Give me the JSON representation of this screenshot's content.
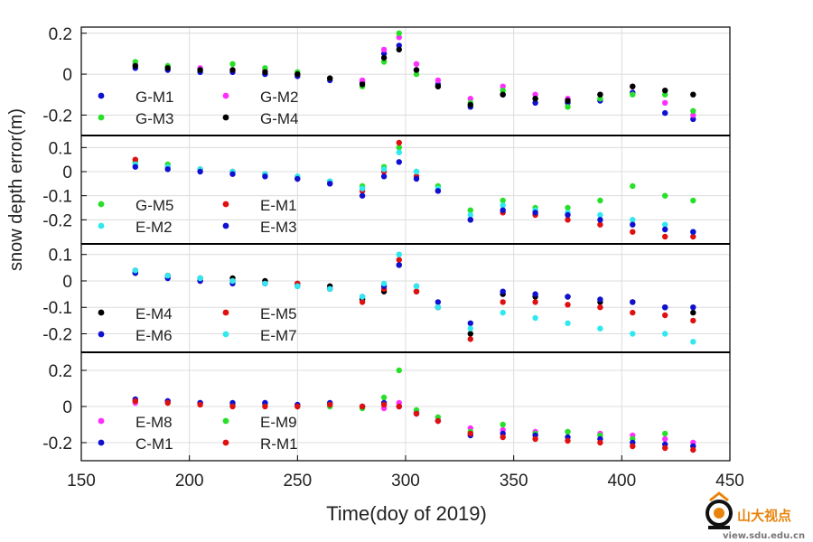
{
  "chart_data": {
    "type": "scatter",
    "xlabel": "Time(doy of 2019)",
    "ylabel": "snow depth error(m)",
    "xlim": [
      150,
      450
    ],
    "xticks": [
      150,
      200,
      250,
      300,
      350,
      400,
      450
    ],
    "grid": true,
    "colors": {
      "G-M1": "#1010d0",
      "G-M2": "#ff30ff",
      "G-M3": "#28e028",
      "G-M4": "#000000",
      "G-M5": "#28e028",
      "E-M1": "#e01010",
      "E-M2": "#30e8f0",
      "E-M3": "#1010d0",
      "E-M4": "#000000",
      "E-M5": "#e01010",
      "E-M6": "#1010d0",
      "E-M7": "#30e8f0",
      "E-M8": "#ff30ff",
      "E-M9": "#28e028",
      "C-M1": "#1010d0",
      "R-M1": "#e01010"
    },
    "panels": [
      {
        "ylim": [
          -0.3,
          0.23
        ],
        "yticks": [
          -0.2,
          0,
          0.2
        ],
        "ytick_labels": [
          "-0.2",
          "0",
          "0.2"
        ],
        "legend": [
          "G-M1",
          "G-M2",
          "G-M3",
          "G-M4"
        ],
        "legend_placement": "bottom-left",
        "series": [
          {
            "name": "G-M1",
            "x": [
              175,
              190,
              205,
              220,
              235,
              250,
              265,
              280,
              290,
              297,
              305,
              315,
              330,
              345,
              360,
              375,
              390,
              405,
              420,
              433
            ],
            "y": [
              0.03,
              0.02,
              0.01,
              0.01,
              0.0,
              -0.01,
              -0.03,
              -0.04,
              0.1,
              0.14,
              0.02,
              -0.05,
              -0.16,
              -0.1,
              -0.14,
              -0.14,
              -0.13,
              -0.09,
              -0.19,
              -0.22
            ]
          },
          {
            "name": "G-M2",
            "x": [
              175,
              190,
              205,
              220,
              235,
              250,
              265,
              280,
              290,
              297,
              305,
              315,
              330,
              345,
              360,
              375,
              390,
              405,
              420,
              433
            ],
            "y": [
              0.05,
              0.04,
              0.03,
              0.02,
              0.02,
              0.0,
              -0.02,
              -0.03,
              0.12,
              0.18,
              0.05,
              -0.03,
              -0.12,
              -0.06,
              -0.1,
              -0.12,
              -0.1,
              -0.06,
              -0.14,
              -0.2
            ]
          },
          {
            "name": "G-M3",
            "x": [
              175,
              190,
              205,
              220,
              235,
              250,
              265,
              280,
              290,
              297,
              305,
              315,
              330,
              345,
              360,
              375,
              390,
              405,
              420,
              433
            ],
            "y": [
              0.06,
              0.04,
              0.02,
              0.05,
              0.03,
              0.01,
              -0.02,
              -0.06,
              0.06,
              0.2,
              0.0,
              -0.06,
              -0.14,
              -0.08,
              -0.12,
              -0.16,
              -0.12,
              -0.1,
              -0.1,
              -0.18
            ]
          },
          {
            "name": "G-M4",
            "x": [
              175,
              190,
              205,
              220,
              235,
              250,
              265,
              280,
              290,
              297,
              305,
              315,
              330,
              345,
              360,
              375,
              390,
              405,
              420,
              433
            ],
            "y": [
              0.04,
              0.03,
              0.02,
              0.02,
              0.01,
              0.0,
              -0.02,
              -0.05,
              0.08,
              0.12,
              0.02,
              -0.06,
              -0.15,
              -0.1,
              -0.12,
              -0.13,
              -0.1,
              -0.06,
              -0.08,
              -0.1
            ]
          }
        ]
      },
      {
        "ylim": [
          -0.3,
          0.15
        ],
        "yticks": [
          -0.2,
          -0.1,
          0,
          0.1
        ],
        "ytick_labels": [
          "-0.2",
          "-0.1",
          "0",
          "0.1"
        ],
        "legend": [
          "G-M5",
          "E-M1",
          "E-M2",
          "E-M3"
        ],
        "legend_placement": "bottom-left",
        "series": [
          {
            "name": "G-M5",
            "x": [
              175,
              190,
              205,
              220,
              235,
              250,
              265,
              280,
              290,
              297,
              305,
              315,
              330,
              345,
              360,
              375,
              390,
              405,
              420,
              433
            ],
            "y": [
              0.04,
              0.03,
              0.01,
              0.0,
              -0.01,
              -0.02,
              -0.04,
              -0.06,
              0.02,
              0.1,
              0.0,
              -0.06,
              -0.16,
              -0.12,
              -0.15,
              -0.15,
              -0.12,
              -0.06,
              -0.1,
              -0.12
            ]
          },
          {
            "name": "E-M1",
            "x": [
              175,
              190,
              205,
              220,
              235,
              250,
              265,
              280,
              290,
              297,
              305,
              315,
              330,
              345,
              360,
              375,
              390,
              405,
              420,
              433
            ],
            "y": [
              0.05,
              0.02,
              0.01,
              0.0,
              -0.01,
              -0.03,
              -0.05,
              -0.08,
              0.0,
              0.12,
              -0.02,
              -0.08,
              -0.2,
              -0.17,
              -0.18,
              -0.2,
              -0.22,
              -0.25,
              -0.27,
              -0.27
            ]
          },
          {
            "name": "E-M2",
            "x": [
              175,
              190,
              205,
              220,
              235,
              250,
              265,
              280,
              290,
              297,
              305,
              315,
              330,
              345,
              360,
              375,
              390,
              405,
              420,
              433
            ],
            "y": [
              0.03,
              0.02,
              0.01,
              0.0,
              -0.01,
              -0.02,
              -0.04,
              -0.07,
              0.01,
              0.08,
              0.0,
              -0.07,
              -0.18,
              -0.14,
              -0.16,
              -0.17,
              -0.18,
              -0.2,
              -0.22,
              -0.25
            ]
          },
          {
            "name": "E-M3",
            "x": [
              175,
              190,
              205,
              220,
              235,
              250,
              265,
              280,
              290,
              297,
              305,
              315,
              330,
              345,
              360,
              375,
              390,
              405,
              420,
              433
            ],
            "y": [
              0.02,
              0.01,
              0.0,
              -0.01,
              -0.02,
              -0.03,
              -0.05,
              -0.1,
              -0.02,
              0.04,
              -0.03,
              -0.08,
              -0.2,
              -0.16,
              -0.17,
              -0.18,
              -0.2,
              -0.22,
              -0.24,
              -0.25
            ]
          }
        ]
      },
      {
        "ylim": [
          -0.27,
          0.14
        ],
        "yticks": [
          -0.2,
          -0.1,
          0,
          0.1
        ],
        "ytick_labels": [
          "-0.2",
          "-0.1",
          "0",
          "0.1"
        ],
        "legend": [
          "E-M4",
          "E-M5",
          "E-M6",
          "E-M7"
        ],
        "legend_placement": "bottom-left",
        "series": [
          {
            "name": "E-M4",
            "x": [
              175,
              190,
              205,
              220,
              235,
              250,
              265,
              280,
              290,
              297,
              305,
              315,
              330,
              345,
              360,
              375,
              390,
              405,
              420,
              433
            ],
            "y": [
              0.03,
              0.02,
              0.01,
              0.01,
              0.0,
              -0.01,
              -0.02,
              -0.07,
              -0.04,
              0.06,
              -0.04,
              -0.1,
              -0.2,
              -0.05,
              -0.06,
              -0.06,
              -0.08,
              -0.08,
              -0.1,
              -0.12
            ]
          },
          {
            "name": "E-M5",
            "x": [
              175,
              190,
              205,
              220,
              235,
              250,
              265,
              280,
              290,
              297,
              305,
              315,
              330,
              345,
              360,
              375,
              390,
              405,
              420,
              433
            ],
            "y": [
              0.04,
              0.02,
              0.0,
              0.0,
              -0.01,
              -0.01,
              -0.03,
              -0.08,
              -0.03,
              0.08,
              -0.04,
              -0.1,
              -0.22,
              -0.08,
              -0.08,
              -0.09,
              -0.1,
              -0.12,
              -0.13,
              -0.15
            ]
          },
          {
            "name": "E-M6",
            "x": [
              175,
              190,
              205,
              220,
              235,
              250,
              265,
              280,
              290,
              297,
              305,
              315,
              330,
              345,
              360,
              375,
              390,
              405,
              420,
              433
            ],
            "y": [
              0.03,
              0.01,
              0.0,
              -0.01,
              -0.01,
              -0.02,
              -0.03,
              -0.06,
              -0.02,
              0.06,
              -0.02,
              -0.08,
              -0.16,
              -0.04,
              -0.05,
              -0.06,
              -0.07,
              -0.08,
              -0.1,
              -0.1
            ]
          },
          {
            "name": "E-M7",
            "x": [
              175,
              190,
              205,
              220,
              235,
              250,
              265,
              280,
              290,
              297,
              305,
              315,
              330,
              345,
              360,
              375,
              390,
              405,
              420,
              433
            ],
            "y": [
              0.04,
              0.02,
              0.01,
              0.0,
              -0.01,
              -0.02,
              -0.03,
              -0.06,
              -0.01,
              0.1,
              -0.02,
              -0.1,
              -0.18,
              -0.12,
              -0.14,
              -0.16,
              -0.18,
              -0.2,
              -0.2,
              -0.23
            ]
          }
        ]
      },
      {
        "ylim": [
          -0.3,
          0.3
        ],
        "yticks": [
          -0.2,
          0,
          0.2
        ],
        "ytick_labels": [
          "-0.2",
          "0",
          "0.2"
        ],
        "legend": [
          "E-M8",
          "E-M9",
          "C-M1",
          "R-M1"
        ],
        "legend_placement": "bottom-left",
        "series": [
          {
            "name": "E-M8",
            "x": [
              175,
              190,
              205,
              220,
              235,
              250,
              265,
              280,
              290,
              297,
              305,
              315,
              330,
              345,
              360,
              375,
              390,
              405,
              420,
              433
            ],
            "y": [
              0.02,
              0.03,
              0.02,
              0.01,
              0.02,
              0.0,
              0.0,
              0.0,
              -0.01,
              0.02,
              -0.03,
              -0.06,
              -0.12,
              -0.13,
              -0.14,
              -0.14,
              -0.15,
              -0.16,
              -0.18,
              -0.2
            ]
          },
          {
            "name": "E-M9",
            "x": [
              175,
              190,
              205,
              220,
              235,
              250,
              265,
              280,
              290,
              297,
              305,
              315,
              330,
              345,
              360,
              375,
              390,
              405,
              420,
              433
            ],
            "y": [
              0.03,
              0.02,
              0.02,
              0.01,
              0.01,
              0.0,
              0.0,
              -0.01,
              0.05,
              0.2,
              -0.02,
              -0.06,
              -0.14,
              -0.1,
              -0.15,
              -0.14,
              -0.16,
              -0.18,
              -0.15,
              -0.22
            ]
          },
          {
            "name": "C-M1",
            "x": [
              175,
              190,
              205,
              220,
              235,
              250,
              265,
              280,
              290,
              297,
              305,
              315,
              330,
              345,
              360,
              375,
              390,
              405,
              420,
              433
            ],
            "y": [
              0.04,
              0.03,
              0.02,
              0.02,
              0.02,
              0.01,
              0.02,
              0.0,
              0.02,
              0.0,
              -0.04,
              -0.08,
              -0.16,
              -0.15,
              -0.16,
              -0.17,
              -0.18,
              -0.2,
              -0.21,
              -0.22
            ]
          },
          {
            "name": "R-M1",
            "x": [
              175,
              190,
              205,
              220,
              235,
              250,
              265,
              280,
              290,
              297,
              305,
              315,
              330,
              345,
              360,
              375,
              390,
              405,
              420,
              433
            ],
            "y": [
              0.03,
              0.02,
              0.01,
              0.0,
              0.0,
              0.0,
              0.01,
              0.0,
              0.01,
              0.0,
              -0.04,
              -0.08,
              -0.15,
              -0.17,
              -0.18,
              -0.19,
              -0.2,
              -0.22,
              -0.23,
              -0.24
            ]
          }
        ]
      }
    ]
  },
  "watermark": {
    "text": "山大视点",
    "url_text": "view.sdu.edu.cn"
  }
}
